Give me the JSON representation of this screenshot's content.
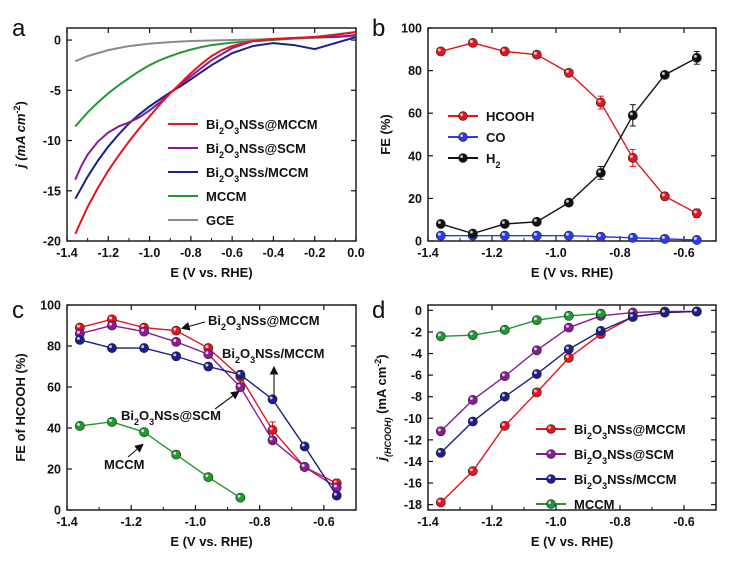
{
  "colors": {
    "red": "#e8141c",
    "purple": "#8b1a9b",
    "navy": "#1a1f8c",
    "green": "#1f9a2e",
    "gray": "#8a8a8a",
    "blue": "#2a3cf0",
    "black": "#111111"
  },
  "chart_data": [
    {
      "panel_label": "a",
      "type": "line",
      "xlabel": "E (V vs. RHE)",
      "ylabel": "j (mA cm-2)",
      "ylabel_parts": {
        "main": "j (mA cm",
        "sup": "-2",
        "end": ")"
      },
      "xlim": [
        -1.4,
        0.0
      ],
      "ylim": [
        -20,
        1.2
      ],
      "xticks": [
        -1.4,
        -1.2,
        -1.0,
        -0.8,
        -0.6,
        -0.4,
        -0.2,
        0.0
      ],
      "xtick_labels": [
        "-1.4",
        "-1.2",
        "-1.0",
        "-0.8",
        "-0.6",
        "-0.4",
        "-0.2",
        "0.0"
      ],
      "yticks": [
        -20,
        -15,
        -10,
        -5,
        0
      ],
      "ytick_labels": [
        "-20",
        "-15",
        "-10",
        "-5",
        "0"
      ],
      "legend": [
        {
          "label": "Bi2O3NSs@MCCM",
          "parts": [
            "Bi",
            "2",
            "O",
            "3",
            "NSs@MCCM"
          ],
          "color_key": "red"
        },
        {
          "label": "Bi2O3NSs@SCM",
          "parts": [
            "Bi",
            "2",
            "O",
            "3",
            "NSs@SCM"
          ],
          "color_key": "purple"
        },
        {
          "label": "Bi2O3NSs/MCCM",
          "parts": [
            "Bi",
            "2",
            "O",
            "3",
            "NSs/MCCM"
          ],
          "color_key": "navy"
        },
        {
          "label": "MCCM",
          "parts": [
            "MCCM"
          ],
          "color_key": "green"
        },
        {
          "label": "GCE",
          "parts": [
            "GCE"
          ],
          "color_key": "gray"
        }
      ],
      "series": [
        {
          "name": "GCE",
          "color_key": "gray",
          "x": [
            -1.36,
            -1.3,
            -1.2,
            -1.1,
            -1.0,
            -0.9,
            -0.8,
            -0.6,
            -0.4,
            -0.2,
            0.0
          ],
          "y": [
            -2.1,
            -1.6,
            -1.0,
            -0.6,
            -0.35,
            -0.2,
            -0.1,
            0.0,
            0.1,
            0.2,
            0.4
          ]
        },
        {
          "name": "MCCM",
          "color_key": "green",
          "x": [
            -1.36,
            -1.3,
            -1.25,
            -1.2,
            -1.15,
            -1.1,
            -1.05,
            -1.0,
            -0.95,
            -0.9,
            -0.85,
            -0.8,
            -0.75,
            -0.7,
            -0.6,
            -0.4,
            -0.2,
            0.0
          ],
          "y": [
            -8.6,
            -7.2,
            -6.2,
            -5.3,
            -4.5,
            -3.8,
            -3.1,
            -2.5,
            -2.0,
            -1.6,
            -1.25,
            -0.95,
            -0.7,
            -0.5,
            -0.25,
            0.0,
            0.3,
            0.8
          ]
        },
        {
          "name": "Bi2O3NSs/MCCM",
          "color_key": "navy",
          "x": [
            -1.36,
            -1.3,
            -1.25,
            -1.2,
            -1.15,
            -1.1,
            -1.05,
            -1.0,
            -0.95,
            -0.9,
            -0.85,
            -0.8,
            -0.75,
            -0.7,
            -0.65,
            -0.6,
            -0.5,
            -0.4,
            -0.3,
            -0.2,
            -0.1,
            0.0
          ],
          "y": [
            -15.8,
            -13.6,
            -12.0,
            -10.6,
            -9.4,
            -8.3,
            -7.4,
            -6.6,
            -5.9,
            -5.2,
            -4.6,
            -3.9,
            -3.2,
            -2.5,
            -1.9,
            -1.3,
            -0.6,
            -0.3,
            -0.5,
            -0.9,
            -0.3,
            0.3
          ]
        },
        {
          "name": "Bi2O3NSs@SCM",
          "color_key": "purple",
          "x": [
            -1.36,
            -1.33,
            -1.3,
            -1.25,
            -1.2,
            -1.15,
            -1.1,
            -1.05,
            -1.0,
            -0.95,
            -0.9,
            -0.85,
            -0.8,
            -0.75,
            -0.7,
            -0.6,
            -0.5,
            -0.4,
            -0.3,
            -0.2,
            -0.1,
            0.0
          ],
          "y": [
            -13.9,
            -12.5,
            -11.4,
            -10.1,
            -9.2,
            -8.6,
            -8.2,
            -7.7,
            -7.0,
            -6.2,
            -5.3,
            -4.4,
            -3.6,
            -2.8,
            -2.0,
            -0.8,
            -0.1,
            0.1,
            0.2,
            0.3,
            0.3,
            0.5
          ]
        },
        {
          "name": "Bi2O3NSs@MCCM",
          "color_key": "red",
          "x": [
            -1.36,
            -1.3,
            -1.25,
            -1.2,
            -1.15,
            -1.1,
            -1.05,
            -1.0,
            -0.95,
            -0.9,
            -0.85,
            -0.8,
            -0.75,
            -0.7,
            -0.65,
            -0.6,
            -0.5,
            -0.4,
            -0.3,
            -0.2,
            -0.1,
            0.0
          ],
          "y": [
            -19.3,
            -16.6,
            -14.7,
            -13.0,
            -11.5,
            -10.1,
            -8.8,
            -7.6,
            -6.4,
            -5.3,
            -4.3,
            -3.3,
            -2.4,
            -1.6,
            -1.0,
            -0.6,
            -0.1,
            0.1,
            0.2,
            0.3,
            0.5,
            0.8
          ]
        }
      ]
    },
    {
      "panel_label": "b",
      "type": "line",
      "xlabel": "E (V vs. RHE)",
      "ylabel": "FE (%)",
      "xlim": [
        -1.4,
        -0.5
      ],
      "ylim": [
        0,
        100
      ],
      "xticks": [
        -1.4,
        -1.2,
        -1.0,
        -0.8,
        -0.6
      ],
      "xtick_labels": [
        "-1.4",
        "-1.2",
        "-1.0",
        "-0.8",
        "-0.6"
      ],
      "yticks": [
        0,
        20,
        40,
        60,
        80,
        100
      ],
      "ytick_labels": [
        "0",
        "20",
        "40",
        "60",
        "80",
        "100"
      ],
      "legend": [
        {
          "label": "HCOOH",
          "parts": [
            "HCOOH"
          ],
          "color_key": "red"
        },
        {
          "label": "CO",
          "parts": [
            "CO"
          ],
          "color_key": "blue"
        },
        {
          "label": "H2",
          "parts": [
            "H",
            "2"
          ],
          "color_key": "black"
        }
      ],
      "series": [
        {
          "name": "HCOOH",
          "color_key": "red",
          "x": [
            -1.36,
            -1.26,
            -1.16,
            -1.06,
            -0.96,
            -0.86,
            -0.76,
            -0.66,
            -0.56
          ],
          "y": [
            89,
            93,
            89,
            87.5,
            79,
            65,
            39,
            21,
            13
          ],
          "err": [
            1,
            1.5,
            1,
            1,
            1,
            3,
            4,
            1,
            2
          ]
        },
        {
          "name": "CO",
          "color_key": "blue",
          "x": [
            -1.36,
            -1.26,
            -1.16,
            -1.06,
            -0.96,
            -0.86,
            -0.76,
            -0.66,
            -0.56
          ],
          "y": [
            2.5,
            2.5,
            2.5,
            2.5,
            2.5,
            2,
            1.5,
            1,
            0.5
          ],
          "err": [
            0,
            0,
            0,
            0,
            0,
            0,
            0,
            0,
            0
          ]
        },
        {
          "name": "H2",
          "color_key": "black",
          "x": [
            -1.36,
            -1.26,
            -1.16,
            -1.06,
            -0.96,
            -0.86,
            -0.76,
            -0.66,
            -0.56
          ],
          "y": [
            8,
            3.5,
            8,
            9,
            18,
            32,
            59,
            78,
            86
          ],
          "err": [
            0,
            0,
            0,
            0,
            1,
            3,
            5,
            1,
            3
          ]
        }
      ]
    },
    {
      "panel_label": "c",
      "type": "line",
      "xlabel": "E (V vs. RHE)",
      "ylabel": "FE of HCOOH (%)",
      "xlim": [
        -1.4,
        -0.5
      ],
      "ylim": [
        0,
        100
      ],
      "xticks": [
        -1.4,
        -1.2,
        -1.0,
        -0.8,
        -0.6
      ],
      "xtick_labels": [
        "-1.4",
        "-1.2",
        "-1.0",
        "-0.8",
        "-0.6"
      ],
      "yticks": [
        0,
        20,
        40,
        60,
        80,
        100
      ],
      "ytick_labels": [
        "0",
        "20",
        "40",
        "60",
        "80",
        "100"
      ],
      "annotations": [
        {
          "label": "Bi2O3NSs@MCCM",
          "parts": [
            "Bi",
            "2",
            "O",
            "3",
            "NSs@MCCM"
          ]
        },
        {
          "label": "Bi2O3NSs/MCCM",
          "parts": [
            "Bi",
            "2",
            "O",
            "3",
            "NSs/MCCM"
          ]
        },
        {
          "label": "Bi2O3NSs@SCM",
          "parts": [
            "Bi",
            "2",
            "O",
            "3",
            "NSs@SCM"
          ]
        },
        {
          "label": "MCCM",
          "parts": [
            "MCCM"
          ]
        }
      ],
      "series": [
        {
          "name": "Bi2O3NSs@MCCM",
          "color_key": "red",
          "x": [
            -1.36,
            -1.26,
            -1.16,
            -1.06,
            -0.96,
            -0.86,
            -0.76,
            -0.66,
            -0.56
          ],
          "y": [
            89,
            93,
            89,
            87.5,
            79,
            65,
            39,
            21,
            13
          ],
          "err": [
            1,
            1.5,
            1,
            1,
            1,
            3,
            4,
            1,
            2
          ]
        },
        {
          "name": "Bi2O3NSs@SCM",
          "color_key": "purple",
          "x": [
            -1.36,
            -1.26,
            -1.16,
            -1.06,
            -0.96,
            -0.86,
            -0.76,
            -0.66,
            -0.56
          ],
          "y": [
            86,
            90,
            87,
            82,
            76,
            60,
            34,
            21,
            11
          ],
          "err": [
            0,
            0,
            0,
            0,
            0,
            0,
            0,
            0,
            0
          ]
        },
        {
          "name": "Bi2O3NSs/MCCM",
          "color_key": "navy",
          "x": [
            -1.36,
            -1.26,
            -1.16,
            -1.06,
            -0.96,
            -0.86,
            -0.76,
            -0.66,
            -0.56
          ],
          "y": [
            83,
            79,
            79,
            75,
            70,
            66,
            54,
            31,
            7
          ],
          "err": [
            0,
            0,
            0,
            0,
            0,
            0,
            0,
            0,
            0
          ]
        },
        {
          "name": "MCCM",
          "color_key": "green",
          "x": [
            -1.36,
            -1.26,
            -1.16,
            -1.06,
            -0.96,
            -0.86
          ],
          "y": [
            41,
            43,
            38,
            27,
            16,
            6
          ],
          "err": [
            0,
            0,
            0,
            0,
            0,
            0
          ]
        }
      ]
    },
    {
      "panel_label": "d",
      "type": "line",
      "xlabel": "E (V vs. RHE)",
      "ylabel": "j(HCOOH) (mA cm-2)",
      "ylabel_parts": {
        "main": "j",
        "sub": "(HCOOH)",
        "mid": " (mA cm",
        "sup": "-2",
        "end": ")"
      },
      "xlim": [
        -1.4,
        -0.5
      ],
      "ylim": [
        -18.5,
        0.5
      ],
      "xticks": [
        -1.4,
        -1.2,
        -1.0,
        -0.8,
        -0.6
      ],
      "xtick_labels": [
        "-1.4",
        "-1.2",
        "-1.0",
        "-0.8",
        "-0.6"
      ],
      "yticks": [
        -18,
        -16,
        -14,
        -12,
        -10,
        -8,
        -6,
        -4,
        -2,
        0
      ],
      "ytick_labels": [
        "-18",
        "-16",
        "-14",
        "-12",
        "-10",
        "-8",
        "-6",
        "-4",
        "-2",
        "0"
      ],
      "legend": [
        {
          "label": "Bi2O3NSs@MCCM",
          "parts": [
            "Bi",
            "2",
            "O",
            "3",
            "NSs@MCCM"
          ],
          "color_key": "red"
        },
        {
          "label": "Bi2O3NSs@SCM",
          "parts": [
            "Bi",
            "2",
            "O",
            "3",
            "NSs@SCM"
          ],
          "color_key": "purple"
        },
        {
          "label": "Bi2O3NSs/MCCM",
          "parts": [
            "Bi",
            "2",
            "O",
            "3",
            "NSs/MCCM"
          ],
          "color_key": "navy"
        },
        {
          "label": "MCCM",
          "parts": [
            "MCCM"
          ],
          "color_key": "green"
        }
      ],
      "series": [
        {
          "name": "Bi2O3NSs@MCCM",
          "color_key": "red",
          "x": [
            -1.36,
            -1.26,
            -1.16,
            -1.06,
            -0.96,
            -0.86,
            -0.76,
            -0.66,
            -0.56
          ],
          "y": [
            -17.8,
            -14.9,
            -10.7,
            -7.6,
            -4.4,
            -2.2,
            -0.6,
            -0.2,
            -0.1
          ]
        },
        {
          "name": "Bi2O3NSs@SCM",
          "color_key": "purple",
          "x": [
            -1.36,
            -1.26,
            -1.16,
            -1.06,
            -0.96,
            -0.86,
            -0.76,
            -0.66,
            -0.56
          ],
          "y": [
            -11.2,
            -8.3,
            -6.1,
            -3.7,
            -1.6,
            -0.5,
            -0.2,
            -0.1,
            -0.1
          ]
        },
        {
          "name": "Bi2O3NSs/MCCM",
          "color_key": "navy",
          "x": [
            -1.36,
            -1.26,
            -1.16,
            -1.06,
            -0.96,
            -0.86,
            -0.76,
            -0.66,
            -0.56
          ],
          "y": [
            -13.2,
            -10.3,
            -8.0,
            -5.9,
            -3.6,
            -1.9,
            -0.6,
            -0.2,
            -0.1
          ]
        },
        {
          "name": "MCCM",
          "color_key": "green",
          "x": [
            -1.36,
            -1.26,
            -1.16,
            -1.06,
            -0.96,
            -0.86
          ],
          "y": [
            -2.4,
            -2.3,
            -1.8,
            -0.9,
            -0.5,
            -0.3
          ]
        }
      ]
    }
  ]
}
